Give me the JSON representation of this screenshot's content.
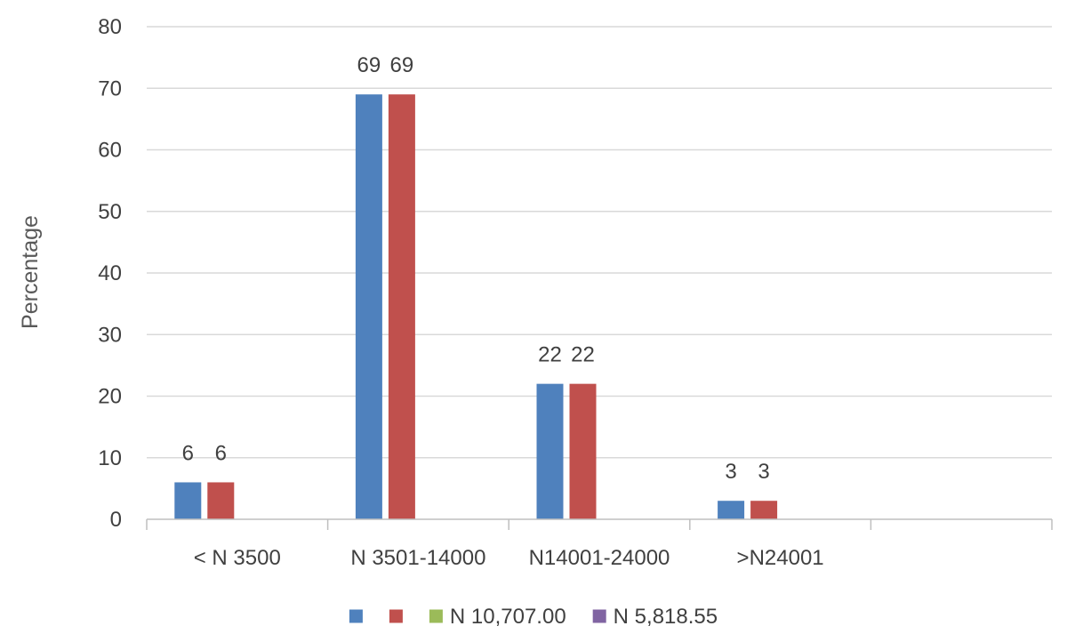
{
  "chart_data": {
    "type": "bar",
    "ylabel": "Percentage",
    "xlabel": "",
    "ylim": [
      0,
      80
    ],
    "yticks": [
      0,
      10,
      20,
      30,
      40,
      50,
      60,
      70,
      80
    ],
    "grid": true,
    "legend_position": "bottom",
    "categories": [
      "< N 3500",
      "N 3501-14000",
      "N14001-24000",
      ">N24001",
      ""
    ],
    "series": [
      {
        "name": "",
        "color": "#4F81BD",
        "values": [
          6,
          69,
          22,
          3,
          null
        ]
      },
      {
        "name": "",
        "color": "#C0504D",
        "values": [
          6,
          69,
          22,
          3,
          null
        ]
      },
      {
        "name": "N 10,707.00",
        "color": "#9BBB59",
        "values": [
          null,
          null,
          null,
          null,
          null
        ]
      },
      {
        "name": "N 5,818.55",
        "color": "#8064A2",
        "values": [
          null,
          null,
          null,
          null,
          null
        ]
      }
    ]
  }
}
